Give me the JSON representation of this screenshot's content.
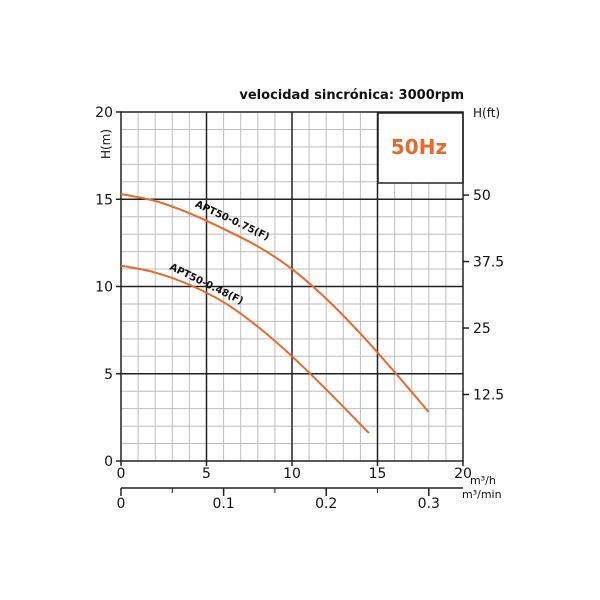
{
  "chart_data": {
    "type": "line",
    "title": "velocidad sincrónica: 3000rpm",
    "badge": "50Hz",
    "ylabel_left": "H(m)",
    "ylabel_right": "H(ft)",
    "xunit_primary": "m³/h",
    "xunit_secondary": "m³/min",
    "xlim": [
      0,
      20
    ],
    "ylim": [
      0,
      20
    ],
    "x_ticks": [
      "0",
      "5",
      "10",
      "15",
      "20"
    ],
    "x_ticks_values": [
      0,
      5,
      10,
      15,
      20
    ],
    "y_ticks": [
      "0",
      "5",
      "10",
      "15",
      "20"
    ],
    "y_ticks_values": [
      0,
      5,
      10,
      15,
      20
    ],
    "y_right_ticks": [
      "12.5",
      "25",
      "37.5",
      "50"
    ],
    "y_right_ticks_m": [
      3.81,
      7.62,
      11.43,
      15.24
    ],
    "x2_ticks": [
      "0",
      "0.1",
      "0.2",
      "0.3"
    ],
    "x2_ticks_m3min": [
      0,
      0.1,
      0.2,
      0.3
    ],
    "grid": true,
    "colors": {
      "series": "#e8692a",
      "grid_minor": "#bdbdbd",
      "grid_major": "#222222",
      "badge": "#e8692a"
    },
    "series": [
      {
        "name": "APT50-0.75(F)",
        "x": [
          0,
          2,
          4,
          6,
          8,
          10,
          12,
          14,
          16,
          18
        ],
        "y": [
          15.3,
          14.9,
          14.2,
          13.3,
          12.3,
          11.0,
          9.3,
          7.3,
          5.1,
          2.8
        ]
      },
      {
        "name": "APT50-0.48(F)",
        "x": [
          0,
          2,
          4,
          6,
          8,
          10,
          12,
          14.5
        ],
        "y": [
          11.2,
          10.8,
          10.1,
          9.1,
          7.7,
          6.0,
          4.1,
          1.6
        ]
      }
    ]
  }
}
